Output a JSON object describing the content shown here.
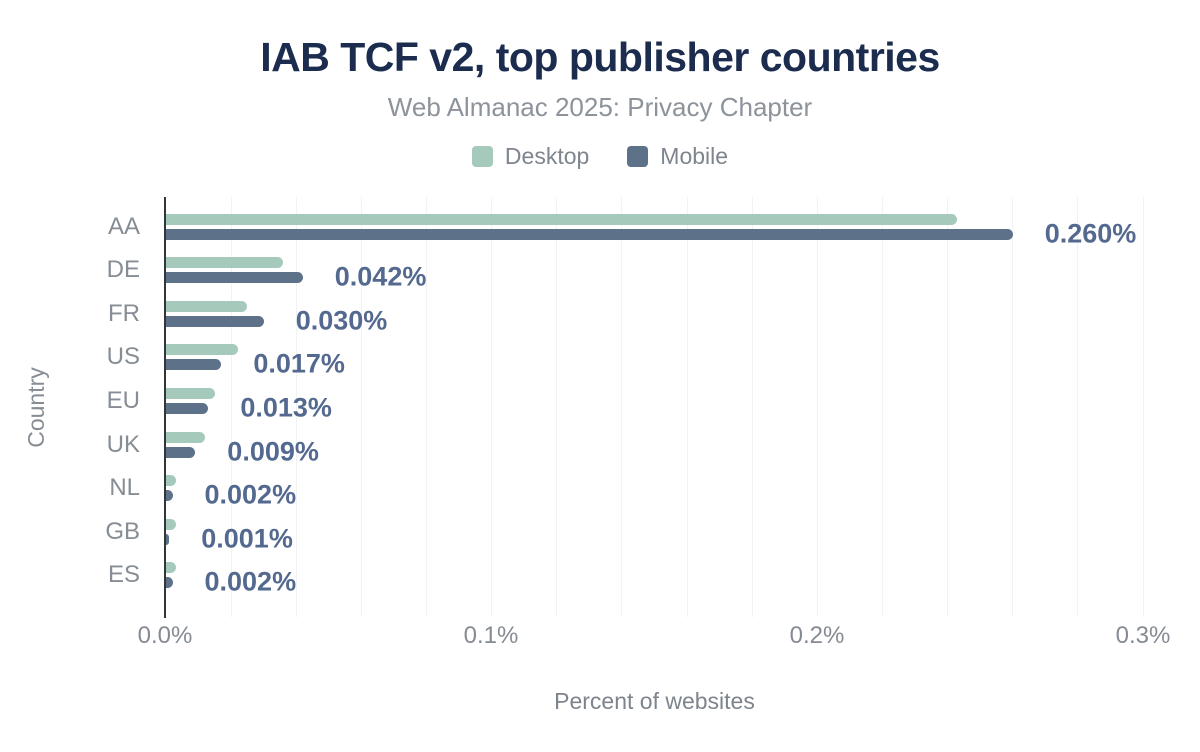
{
  "title": "IAB TCF v2, top publisher countries",
  "subtitle": "Web Almanac 2025: Privacy Chapter",
  "legend": [
    {
      "label": "Desktop",
      "color": "#a5cabb"
    },
    {
      "label": "Mobile",
      "color": "#5d7189"
    }
  ],
  "colors": {
    "title": "#1b2c4e",
    "subtitle": "#8d939a",
    "desktop_bar": "#a5cabb",
    "mobile_bar": "#5d7189",
    "value_label": "#54698f",
    "axis_line": "#333538",
    "gridline": "#f1f2f4",
    "axis_text": "#868d94"
  },
  "chart_data": {
    "type": "bar",
    "orientation": "horizontal",
    "title": "IAB TCF v2, top publisher countries",
    "subtitle": "Web Almanac 2025: Privacy Chapter",
    "categories": [
      "AA",
      "DE",
      "FR",
      "US",
      "EU",
      "UK",
      "NL",
      "GB",
      "ES"
    ],
    "series": [
      {
        "name": "Desktop",
        "color": "#a5cabb",
        "values": [
          0.243,
          0.036,
          0.025,
          0.022,
          0.015,
          0.012,
          0.003,
          0.003,
          0.003
        ]
      },
      {
        "name": "Mobile",
        "color": "#5d7189",
        "values": [
          0.26,
          0.042,
          0.03,
          0.017,
          0.013,
          0.009,
          0.002,
          0.001,
          0.002
        ]
      }
    ],
    "bar_labels": [
      "0.260%",
      "0.042%",
      "0.030%",
      "0.017%",
      "0.013%",
      "0.009%",
      "0.002%",
      "0.001%",
      "0.002%"
    ],
    "xlabel": "Percent of websites",
    "ylabel": "Country",
    "xlim": [
      0,
      0.3
    ],
    "x_ticks": [
      "0.0%",
      "0.1%",
      "0.2%",
      "0.3%"
    ],
    "grid_interval": 0.02,
    "grid": "vertical",
    "legend_position": "top"
  }
}
